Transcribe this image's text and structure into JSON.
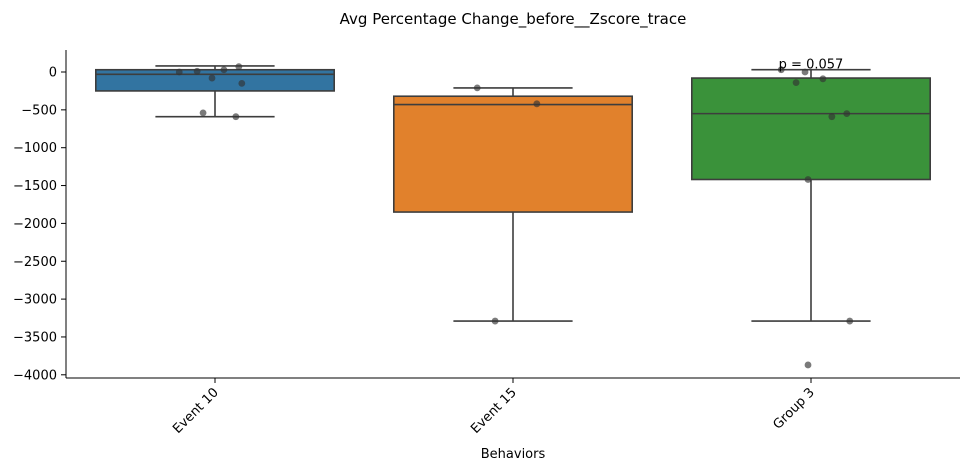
{
  "chart_data": {
    "type": "box",
    "title": "Avg Percentage Change_before__Zscore_trace",
    "xlabel": "Behaviors",
    "ylabel": "",
    "ylim": [
      -4050,
      280
    ],
    "yticks": [
      0,
      -500,
      -1000,
      -1500,
      -2000,
      -2500,
      -3000,
      -3500,
      -4000
    ],
    "ytick_labels": [
      "0",
      "−500",
      "−1000",
      "−1500",
      "−2000",
      "−2500",
      "−3000",
      "−3500",
      "−4000"
    ],
    "categories": [
      "Event 10",
      "Event 15",
      "Group 3"
    ],
    "boxes": [
      {
        "category": "Event 10",
        "color": "#3274a1",
        "q1": -250,
        "median": -30,
        "q3": 30,
        "whisker_low": -590,
        "whisker_high": 80
      },
      {
        "category": "Event 15",
        "color": "#e1812c",
        "q1": -1850,
        "median": -430,
        "q3": -320,
        "whisker_low": -3290,
        "whisker_high": -210
      },
      {
        "category": "Group 3",
        "color": "#3a923a",
        "q1": -1420,
        "median": -550,
        "q3": -80,
        "whisker_low": -3290,
        "whisker_high": 30
      }
    ],
    "points": [
      {
        "category": "Event 10",
        "values": [
          0,
          10,
          30,
          70,
          -80,
          -150,
          -540,
          -590
        ],
        "offsets": [
          -0.12,
          -0.06,
          0.03,
          0.08,
          -0.01,
          0.09,
          -0.04,
          0.07
        ]
      },
      {
        "category": "Event 15",
        "values": [
          -210,
          -420,
          -3290
        ],
        "offsets": [
          -0.12,
          0.08,
          -0.06
        ]
      },
      {
        "category": "Group 3",
        "values": [
          30,
          0,
          -90,
          -140,
          -550,
          -590,
          -1420,
          -3290,
          -3870
        ],
        "offsets": [
          -0.1,
          -0.02,
          0.04,
          -0.05,
          0.12,
          0.07,
          -0.01,
          0.13,
          -0.01
        ]
      }
    ],
    "annotations": [
      {
        "text": "p = 0.057",
        "category": "Group 3",
        "y": 20
      }
    ],
    "point_color": "#333333"
  }
}
